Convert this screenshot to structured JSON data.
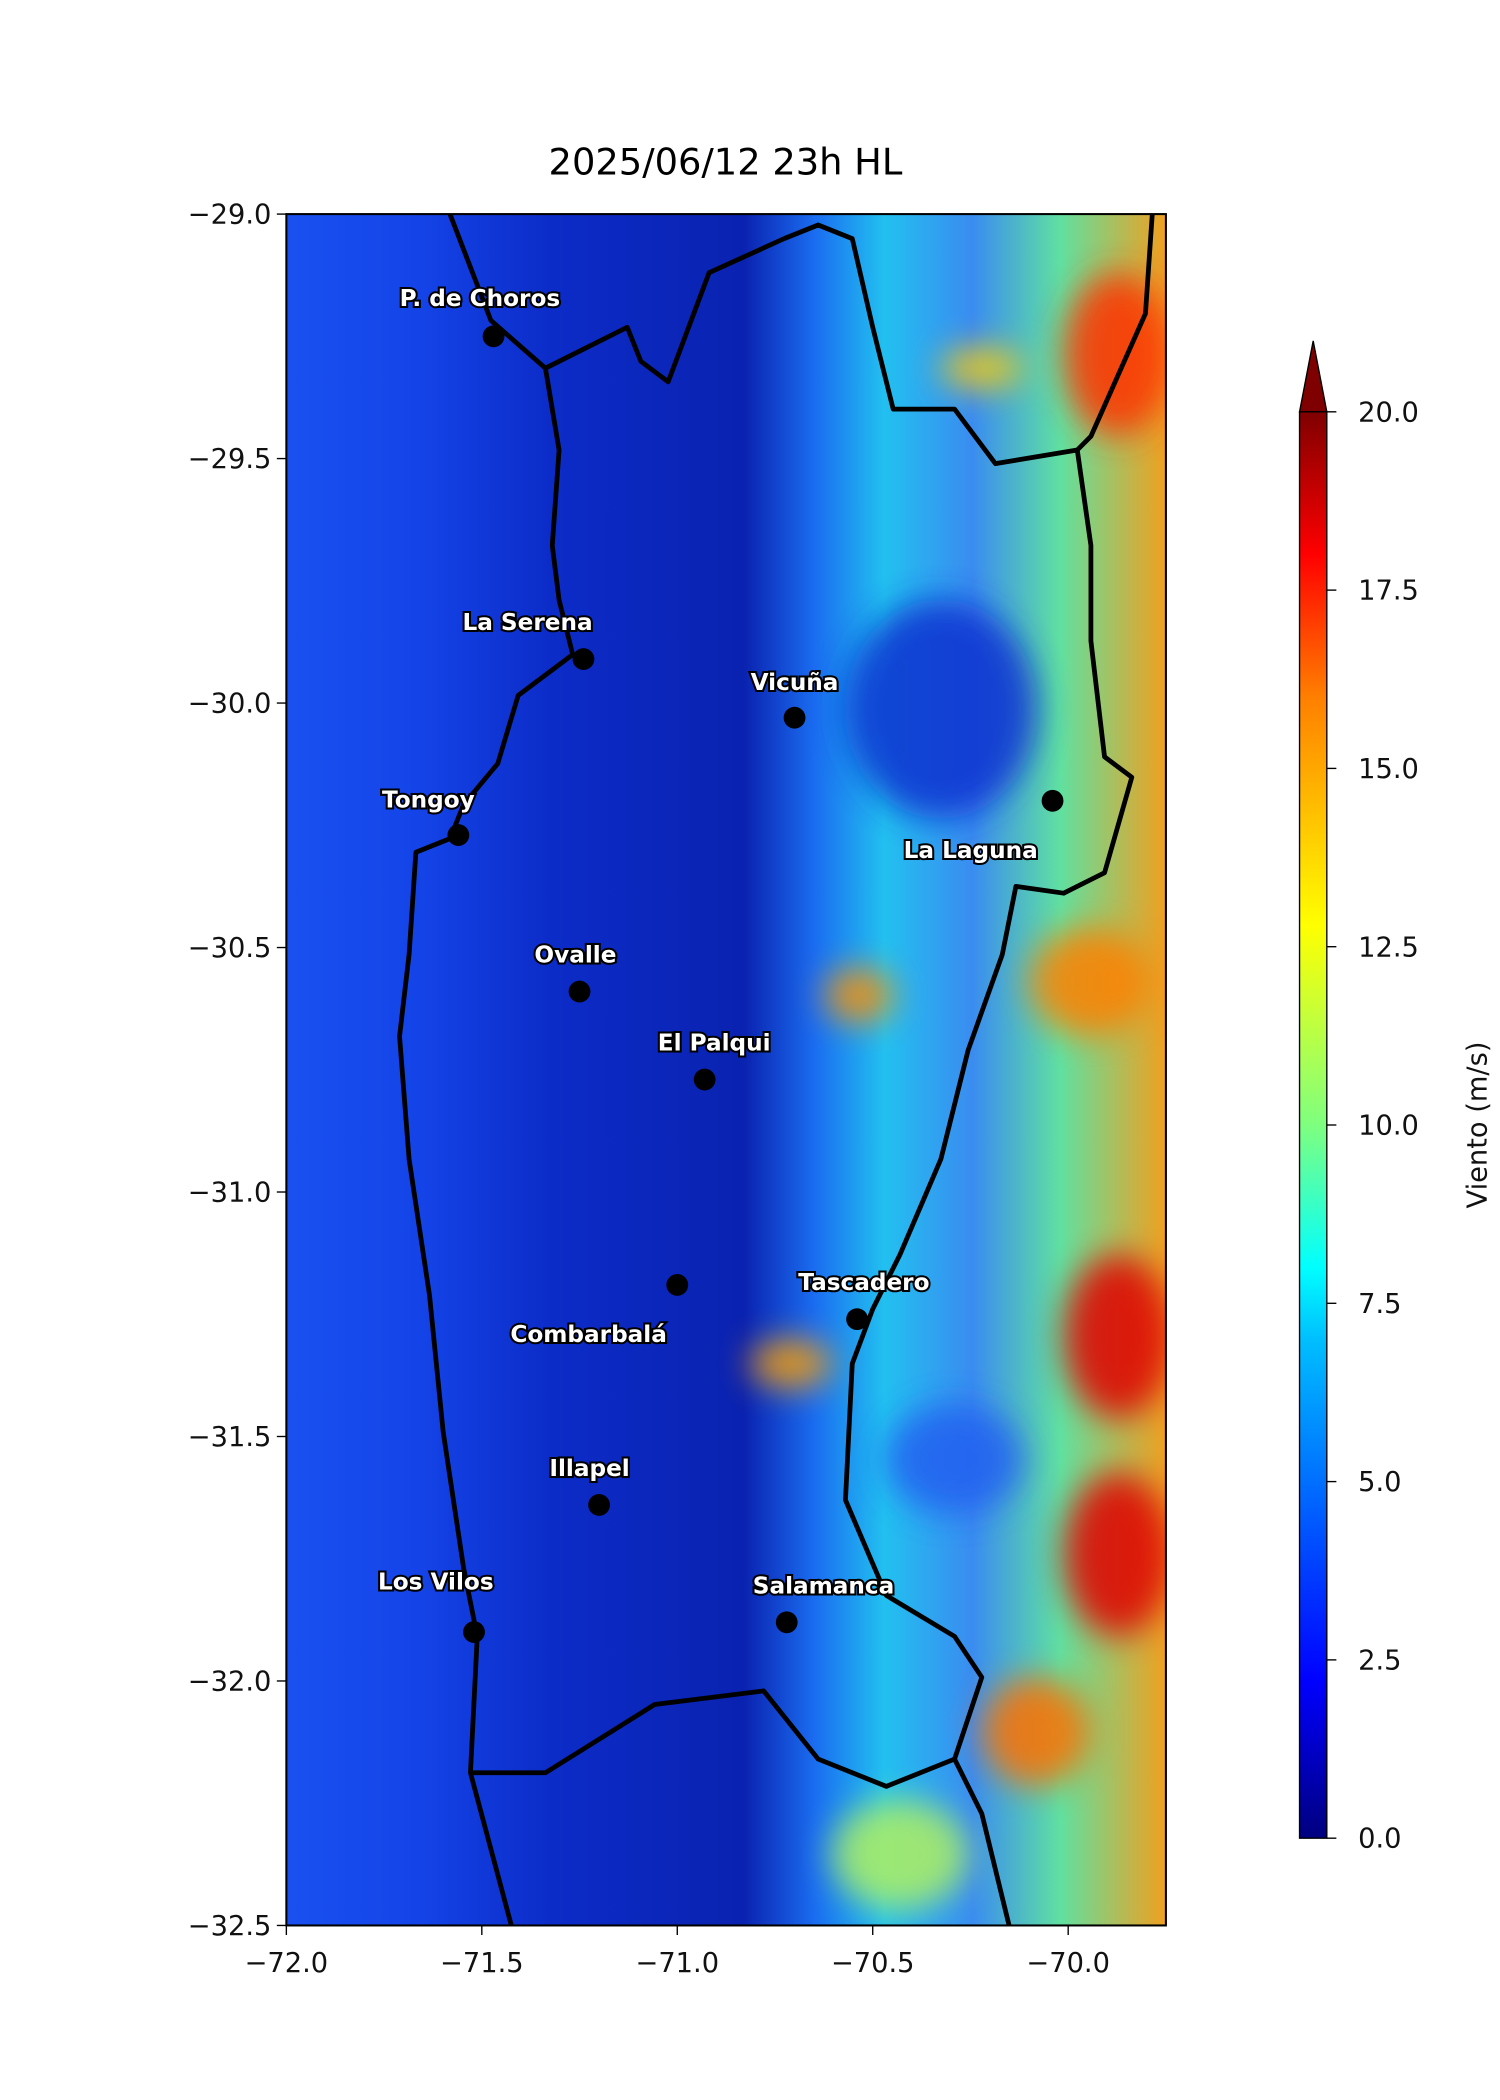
{
  "title": "2025/06/12 23h HL",
  "map": {
    "xlim": [
      -72,
      -69.75
    ],
    "ylim": [
      -32.5,
      -29
    ],
    "xticks": [
      {
        "value": -72,
        "label": "−72.0"
      },
      {
        "value": -71.5,
        "label": "−71.5"
      },
      {
        "value": -71,
        "label": "−71.0"
      },
      {
        "value": -70.5,
        "label": "−70.5"
      },
      {
        "value": -70,
        "label": "−70.0"
      }
    ],
    "yticks": [
      {
        "value": -29,
        "label": "−29.0"
      },
      {
        "value": -29.5,
        "label": "−29.5"
      },
      {
        "value": -30,
        "label": "−30.0"
      },
      {
        "value": -30.5,
        "label": "−30.5"
      },
      {
        "value": -31,
        "label": "−31.0"
      },
      {
        "value": -31.5,
        "label": "−31.5"
      },
      {
        "value": -32,
        "label": "−32.0"
      },
      {
        "value": -32.5,
        "label": "−32.5"
      }
    ],
    "cities": [
      {
        "name": "P. de Choros",
        "lon": -71.47,
        "lat": -29.25
      },
      {
        "name": "La Serena",
        "lon": -71.24,
        "lat": -29.91
      },
      {
        "name": "Vicuña",
        "lon": -70.7,
        "lat": -30.03
      },
      {
        "name": "La Laguna",
        "lon": -70.04,
        "lat": -30.2
      },
      {
        "name": "Tongoy",
        "lon": -71.56,
        "lat": -30.27
      },
      {
        "name": "Ovalle",
        "lon": -71.25,
        "lat": -30.59
      },
      {
        "name": "El Palqui",
        "lon": -70.93,
        "lat": -30.77
      },
      {
        "name": "Combarbalá",
        "lon": -71.0,
        "lat": -31.19
      },
      {
        "name": "Tascadero",
        "lon": -70.54,
        "lat": -31.26
      },
      {
        "name": "Illapel",
        "lon": -71.2,
        "lat": -31.64
      },
      {
        "name": "Los Vilos",
        "lon": -71.52,
        "lat": -31.9
      },
      {
        "name": "Salamanca",
        "lon": -70.72,
        "lat": -31.88
      }
    ]
  },
  "colorbar": {
    "label": "Viento (m/s)",
    "lim": [
      0,
      20
    ],
    "ticks": [
      {
        "value": 0,
        "label": "0.0"
      },
      {
        "value": 2.5,
        "label": "2.5"
      },
      {
        "value": 5,
        "label": "5.0"
      },
      {
        "value": 7.5,
        "label": "7.5"
      },
      {
        "value": 10,
        "label": "10.0"
      },
      {
        "value": 12.5,
        "label": "12.5"
      },
      {
        "value": 15,
        "label": "15.0"
      },
      {
        "value": 17.5,
        "label": "17.5"
      },
      {
        "value": 20,
        "label": "20.0"
      }
    ]
  }
}
